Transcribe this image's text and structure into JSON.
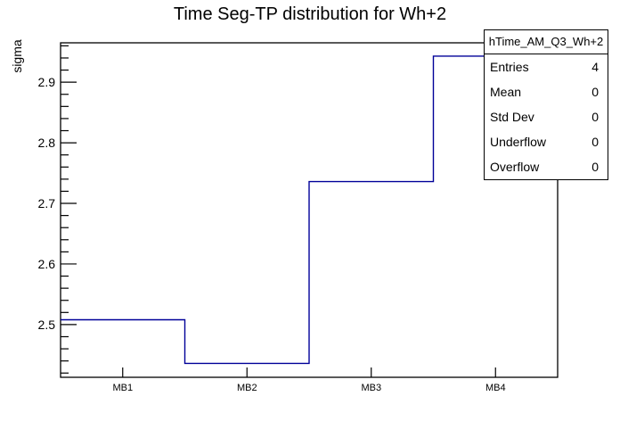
{
  "chart_data": {
    "type": "step-histogram",
    "title": "Time Seg-TP distribution for Wh+2",
    "ylabel": "sigma",
    "xlabel": "",
    "categories": [
      "MB1",
      "MB2",
      "MB3",
      "MB4"
    ],
    "values": [
      2.508,
      2.436,
      2.736,
      2.943
    ],
    "ylim": [
      2.413,
      2.965
    ],
    "y_major_ticks": [
      2.5,
      2.6,
      2.7,
      2.8,
      2.9
    ],
    "y_major_tick_labels": [
      "2.5",
      "2.6",
      "2.7",
      "2.8",
      "2.9"
    ],
    "y_minor_tick_step": 0.02,
    "grid": false,
    "legend_position": "none",
    "line_color": "#000099",
    "frame_color": "#000000",
    "background_color": "#ffffff"
  },
  "stats_box": {
    "header": "hTime_AM_Q3_Wh+2",
    "rows": [
      {
        "label": "Entries",
        "value": "4"
      },
      {
        "label": "Mean",
        "value": "0"
      },
      {
        "label": "Std Dev",
        "value": "0"
      },
      {
        "label": "Underflow",
        "value": "0"
      },
      {
        "label": "Overflow",
        "value": "0"
      }
    ]
  }
}
